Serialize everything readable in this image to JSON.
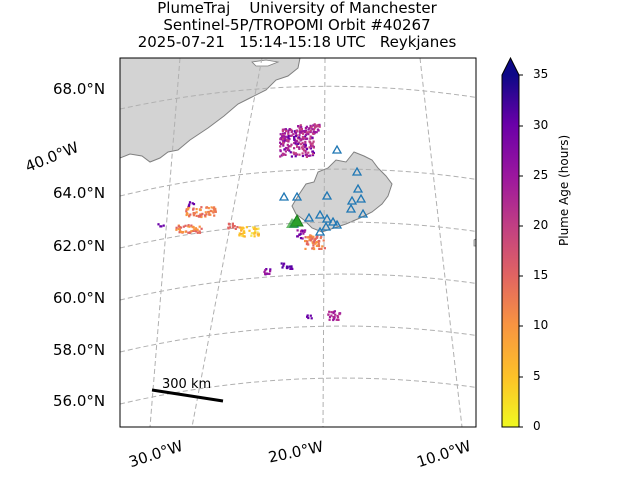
{
  "title": {
    "line1": "PlumeTraj    University of Manchester",
    "line2": "Sentinel-5P/TROPOMI Orbit #40267",
    "line3": "2025-07-21   15:14-15:18 UTC   Reykjanes"
  },
  "map": {
    "land_color": "#d3d3d3",
    "coast_color": "#808080",
    "grid_color": "#b0b0b0",
    "lat_labels": [
      "68.0°N",
      "64.0°N",
      "62.0°N",
      "60.0°N",
      "58.0°N",
      "56.0°N"
    ],
    "lon_labels": [
      "40.0°W",
      "30.0°W",
      "20.0°W",
      "10.0°W"
    ],
    "scale_bar_label": "300 km",
    "volcano_marker_color": "#1f77b4",
    "source_marker_color": "#2ca02c"
  },
  "colorbar": {
    "label": "Plume Age (hours)",
    "ticks": [
      "0",
      "5",
      "10",
      "15",
      "20",
      "25",
      "30",
      "35"
    ],
    "min": 0,
    "max": 35,
    "extend": "max",
    "colormap": "plasma_r"
  }
}
